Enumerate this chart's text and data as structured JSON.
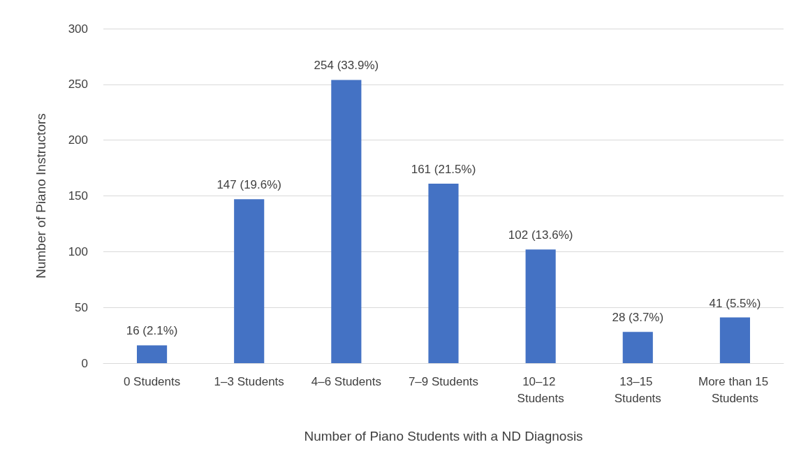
{
  "chart_data": {
    "type": "bar",
    "xlabel": "Number of Piano Students with a ND Diagnosis",
    "ylabel": "Number of Piano Instructors",
    "categories": [
      "0 Students",
      "1–3 Students",
      "4–6 Students",
      "7–9 Students",
      "10–12 Students",
      "13–15 Students",
      "More than 15 Students"
    ],
    "values": [
      16,
      147,
      254,
      161,
      102,
      28,
      41
    ],
    "value_labels": [
      "16 (2.1%)",
      "147 (19.6%)",
      "254 (33.9%)",
      "161 (21.5%)",
      "102 (13.6%)",
      "28 (3.7%)",
      "41 (5.5%)"
    ],
    "color": "#4472c4",
    "ylim": [
      0,
      300
    ],
    "yticks": [
      0,
      50,
      100,
      150,
      200,
      250,
      300
    ],
    "grid": "y"
  }
}
